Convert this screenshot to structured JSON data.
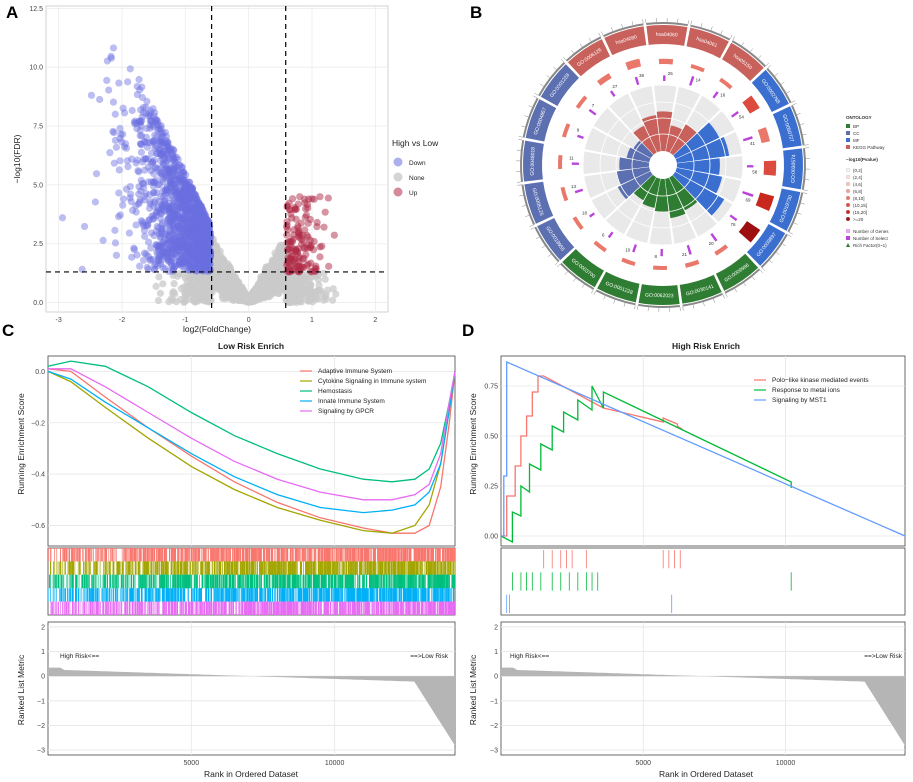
{
  "panels": {
    "a": "A",
    "b": "B",
    "c": "C",
    "d": "D"
  },
  "colors": {
    "down": "#6b6ee0",
    "none": "#c9c9c9",
    "up": "#b02a45",
    "bp": "#2f7d32",
    "cc": "#5c6fb0",
    "mf": "#3a6fd0",
    "kegg": "#c8605b",
    "enrich_bar": "#b944d9",
    "grid": "#ebebeb"
  },
  "chart_data": [
    {
      "id": "volcano",
      "type": "scatter",
      "xlabel": "log2(FoldChange)",
      "ylabel": "−log10(FDR)",
      "xlim": [
        -3.2,
        2.2
      ],
      "ylim": [
        -0.4,
        12.6
      ],
      "xticks": [
        -3,
        -2,
        -1,
        0,
        1,
        2
      ],
      "yticks": [
        0.0,
        2.5,
        5.0,
        7.5,
        10.0,
        12.5
      ],
      "xtick_labels": [
        "-3",
        "-2",
        "-1",
        "0",
        "1",
        "2"
      ],
      "ytick_labels": [
        "0.0",
        "2.5",
        "5.0",
        "7.5",
        "10.0",
        "12.5"
      ],
      "fc_threshold": [
        -0.585,
        0.585
      ],
      "fdr_threshold": 1.301,
      "legend_title": "High vs Low",
      "legend": [
        "Down",
        "None",
        "Up"
      ],
      "series": [
        {
          "name": "Down",
          "n_points": 1400
        },
        {
          "name": "None",
          "n_points": 2800
        },
        {
          "name": "Up",
          "n_points": 140
        }
      ]
    },
    {
      "id": "go_circle",
      "type": "circular",
      "outer_labels": [
        "GO:0006126",
        "hsa04080",
        "hsa04060",
        "hsa04061",
        "hsa05150",
        "GO:0002768",
        "GO:0050727",
        "GO:0030574",
        "GO:0019730",
        "GO:0009897",
        "GO:0009986",
        "GO:0030141",
        "GO:0062023",
        "GO:0001228",
        "GO:0003700",
        "GO:0019955",
        "GO:0005125",
        "GO:0048018",
        "GO:0004857",
        "GO:0001228"
      ],
      "categories": [
        "KEGG Pathway",
        "KEGG Pathway",
        "KEGG Pathway",
        "KEGG Pathway",
        "KEGG Pathway",
        "MF",
        "MF",
        "MF",
        "MF",
        "MF",
        "BP",
        "BP",
        "BP",
        "BP",
        "BP",
        "CC",
        "CC",
        "CC",
        "CC",
        "CC"
      ],
      "gene_counts": [
        27,
        38,
        25,
        14,
        16,
        54,
        41,
        58,
        69,
        76,
        20,
        21,
        8,
        10,
        6,
        18,
        13,
        11,
        9,
        7
      ],
      "select_labels": [
        "27",
        "38",
        "25",
        "14",
        "16",
        "54",
        "41",
        "58",
        "69",
        "76",
        "20",
        "21",
        "8",
        "10",
        "6",
        "18",
        "13",
        "11",
        "9",
        "7"
      ],
      "rich_factor": [
        0.45,
        0.55,
        0.6,
        0.4,
        0.5,
        0.75,
        0.8,
        0.65,
        0.7,
        0.85,
        0.55,
        0.6,
        0.5,
        0.45,
        0.4,
        0.55,
        0.5,
        0.45,
        0.35,
        0.3
      ],
      "enrich_bar": [
        0.4,
        0.5,
        0.35,
        0.6,
        0.45,
        0.5,
        0.6,
        0.4,
        0.7,
        0.5,
        0.55,
        0.6,
        0.45,
        0.5,
        0.4,
        0.35,
        0.5,
        0.45,
        0.4,
        0.5
      ],
      "legend": {
        "ontology_title": "ONTOLOGY",
        "ontology": [
          "BP",
          "CC",
          "MF",
          "KEGG Pathway"
        ],
        "pvalue_title": "−log10(Pvalue)",
        "pvalue_bins": [
          "(0,2]",
          "(2,4]",
          "(4,6]",
          "(6,8]",
          "(8,10]",
          "(10,15]",
          "(15,20]",
          ">=20"
        ],
        "pvalue_colors": [
          "#f4f4f4",
          "#f6e0dd",
          "#f4c3bc",
          "#f0a298",
          "#e9786a",
          "#dc4b3e",
          "#c9281f",
          "#9e0f12"
        ],
        "extras": [
          "Number of Genes",
          "Number of Select",
          "Rich Factor(0~1)"
        ]
      }
    },
    {
      "id": "gsea_low",
      "type": "line",
      "title": "Low Risk Enrich",
      "ylabel": "Running Enrichment Score",
      "ylim": [
        -0.68,
        0.06
      ],
      "yticks": [
        0.0,
        -0.2,
        -0.4,
        -0.6
      ],
      "ytick_labels": [
        "0.0",
        "−0.2",
        "−0.4",
        "−0.6"
      ],
      "xlim": [
        0,
        14200
      ],
      "series": [
        {
          "name": "Adaptive Immune System",
          "color": "#f8766d",
          "x": [
            0,
            800,
            2000,
            3500,
            5000,
            6500,
            8000,
            9500,
            11000,
            12000,
            12800,
            13300,
            13700,
            14000,
            14200
          ],
          "y": [
            0.01,
            0.0,
            -0.1,
            -0.22,
            -0.33,
            -0.43,
            -0.51,
            -0.57,
            -0.61,
            -0.63,
            -0.63,
            -0.6,
            -0.45,
            -0.2,
            0.0
          ]
        },
        {
          "name": "Cytokine Signaling in Immune system",
          "color": "#a3a500",
          "x": [
            0,
            800,
            2000,
            3500,
            5000,
            6500,
            8000,
            9500,
            11000,
            12000,
            12800,
            13300,
            13700,
            14000,
            14200
          ],
          "y": [
            0.0,
            -0.04,
            -0.14,
            -0.26,
            -0.37,
            -0.46,
            -0.53,
            -0.58,
            -0.62,
            -0.63,
            -0.6,
            -0.52,
            -0.36,
            -0.15,
            0.0
          ]
        },
        {
          "name": "Hemostasis",
          "color": "#00bf7d",
          "x": [
            0,
            800,
            2000,
            3500,
            5000,
            6500,
            8000,
            9500,
            11000,
            12000,
            12800,
            13300,
            13700,
            14000,
            14200
          ],
          "y": [
            0.02,
            0.04,
            0.02,
            -0.06,
            -0.16,
            -0.25,
            -0.32,
            -0.38,
            -0.42,
            -0.43,
            -0.42,
            -0.38,
            -0.28,
            -0.12,
            0.0
          ]
        },
        {
          "name": "Innate Immune System",
          "color": "#00b0f6",
          "x": [
            0,
            800,
            2000,
            3500,
            5000,
            6500,
            8000,
            9500,
            11000,
            12000,
            12800,
            13300,
            13700,
            14000,
            14200
          ],
          "y": [
            0.0,
            -0.03,
            -0.12,
            -0.22,
            -0.32,
            -0.41,
            -0.48,
            -0.53,
            -0.55,
            -0.54,
            -0.52,
            -0.47,
            -0.36,
            -0.15,
            0.0
          ]
        },
        {
          "name": "Signaling by GPCR",
          "color": "#e76bf3",
          "x": [
            0,
            800,
            2000,
            3500,
            5000,
            6500,
            8000,
            9500,
            11000,
            12000,
            12800,
            13300,
            13700,
            14000,
            14200
          ],
          "y": [
            0.01,
            0.01,
            -0.06,
            -0.16,
            -0.26,
            -0.35,
            -0.42,
            -0.47,
            -0.5,
            -0.5,
            -0.48,
            -0.44,
            -0.32,
            -0.12,
            0.0
          ]
        }
      ],
      "rank": {
        "ylabel": "Ranked List Metric",
        "xlabel": "Rank in Ordered Dataset",
        "xticks": [
          5000,
          10000
        ],
        "xtick_labels": [
          "5000",
          "10000"
        ],
        "yticks": [
          2,
          1,
          0,
          -1,
          -2,
          -3
        ],
        "ytick_labels": [
          "2",
          "1",
          "0",
          "−1",
          "−2",
          "−3"
        ],
        "ylim": [
          -3.2,
          2.2
        ],
        "left_label": "High Risk<==",
        "right_label": "==>Low Risk"
      }
    },
    {
      "id": "gsea_high",
      "type": "line",
      "title": "High Risk Enrich",
      "ylabel": "Running Enrichment Score",
      "ylim": [
        -0.05,
        0.9
      ],
      "yticks": [
        0.0,
        0.25,
        0.5,
        0.75
      ],
      "ytick_labels": [
        "0.00",
        "0.25",
        "0.50",
        "0.75"
      ],
      "xlim": [
        0,
        14200
      ],
      "series": [
        {
          "name": "Polo−like kinase mediated events",
          "color": "#f8766d",
          "x": [
            0,
            200,
            200,
            500,
            500,
            700,
            700,
            900,
            900,
            1100,
            1100,
            1300,
            1300,
            1500,
            1500,
            3600,
            3600,
            5700,
            5700,
            6200,
            6200,
            6400
          ],
          "y": [
            0.0,
            0.0,
            0.2,
            0.2,
            0.35,
            0.35,
            0.5,
            0.5,
            0.6,
            0.6,
            0.72,
            0.72,
            0.8,
            0.8,
            0.8,
            0.64,
            0.64,
            0.57,
            0.59,
            0.56,
            0.55,
            0.53
          ]
        },
        {
          "name": "Response to metal ions",
          "color": "#00ba38",
          "x": [
            0,
            400,
            400,
            700,
            700,
            1000,
            1000,
            1400,
            1400,
            1800,
            1800,
            2200,
            2200,
            2700,
            2700,
            3200,
            3200,
            3600,
            3600,
            10200,
            10200
          ],
          "y": [
            0.0,
            -0.03,
            0.12,
            0.1,
            0.25,
            0.22,
            0.36,
            0.33,
            0.46,
            0.43,
            0.55,
            0.52,
            0.62,
            0.58,
            0.68,
            0.63,
            0.75,
            0.64,
            0.72,
            0.27,
            0.24
          ]
        },
        {
          "name": "Signaling by MST1",
          "color": "#619cff",
          "x": [
            0,
            100,
            100,
            200,
            200,
            14200
          ],
          "y": [
            0.0,
            0.0,
            0.3,
            0.3,
            0.87,
            0.0
          ]
        }
      ],
      "rank": {
        "ylabel": "Ranked List Metric",
        "xlabel": "Rank in Ordered Dataset",
        "xticks": [
          5000,
          10000
        ],
        "xtick_labels": [
          "5000",
          "10000"
        ],
        "yticks": [
          2,
          1,
          0,
          -1,
          -2,
          -3
        ],
        "ytick_labels": [
          "2",
          "1",
          "0",
          "−1",
          "−2",
          "−3"
        ],
        "ylim": [
          -3.2,
          2.2
        ],
        "left_label": "High Risk<==",
        "right_label": "==>Low Risk"
      }
    }
  ]
}
